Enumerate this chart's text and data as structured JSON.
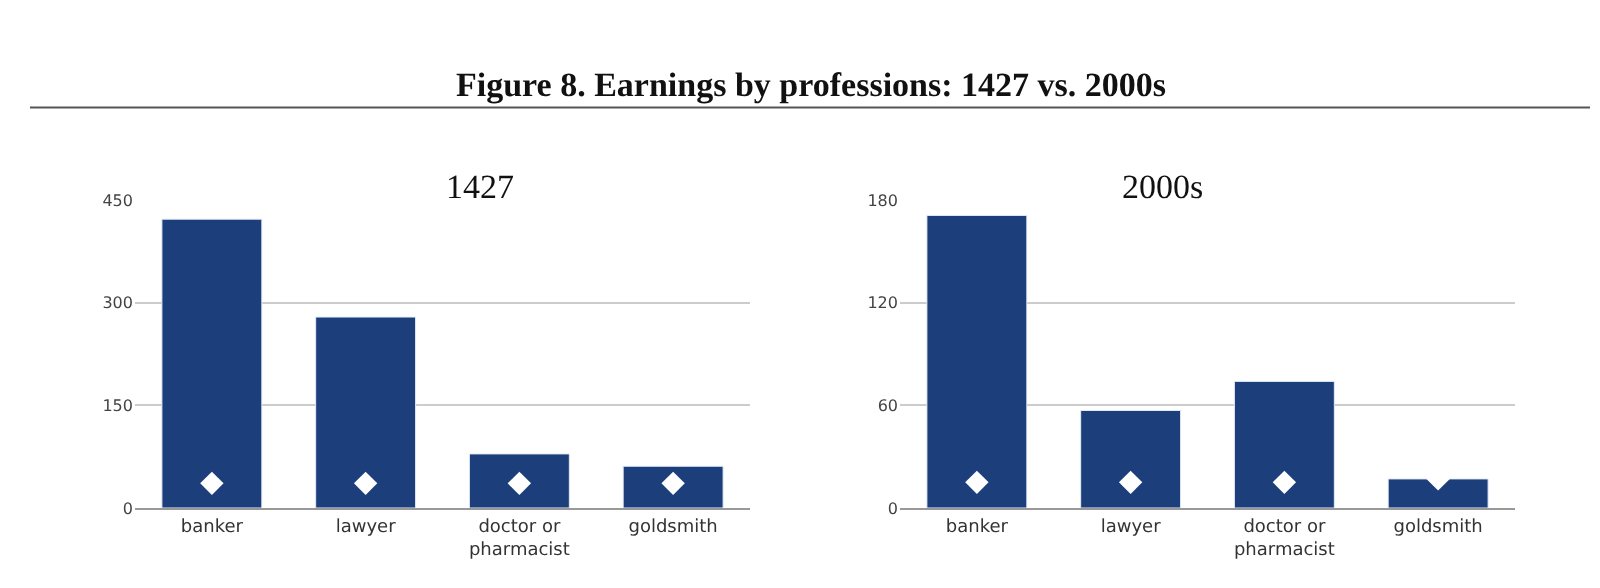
{
  "chart_data": [
    {
      "type": "bar",
      "title": "1427",
      "annotations": [
        "Figure 8. Earnings by professions: 1427 vs. 2000s"
      ],
      "categories": [
        "banker",
        "lawyer",
        "doctor or pharmacist",
        "goldsmith"
      ],
      "ylim": [
        0,
        450
      ],
      "yticks": [
        0,
        150,
        300,
        450
      ],
      "grid": "y",
      "series": [
        {
          "color": "#1c3f7c",
          "values": [
            422,
            279,
            79,
            61
          ]
        },
        {
          "type": "scatter",
          "marker": "diamond",
          "color": "#ffffff",
          "x": [
            "banker",
            "lawyer",
            "doctor or pharmacist",
            "goldsmith"
          ],
          "values": [
            36,
            36,
            36,
            36
          ]
        }
      ]
    },
    {
      "type": "bar",
      "title": "2000s",
      "categories": [
        "banker",
        "lawyer",
        "doctor or pharmacist",
        "goldsmith"
      ],
      "ylim": [
        0,
        180
      ],
      "yticks": [
        0,
        60,
        120,
        180
      ],
      "grid": "y",
      "series": [
        {
          "color": "#1c3f7c",
          "values": [
            171,
            57,
            74,
            17
          ]
        },
        {
          "type": "scatter",
          "marker": "diamond",
          "color": "#ffffff",
          "x": [
            "banker",
            "lawyer",
            "doctor or pharmacist",
            "goldsmith"
          ],
          "values": [
            15,
            15,
            15,
            17
          ]
        }
      ]
    }
  ]
}
